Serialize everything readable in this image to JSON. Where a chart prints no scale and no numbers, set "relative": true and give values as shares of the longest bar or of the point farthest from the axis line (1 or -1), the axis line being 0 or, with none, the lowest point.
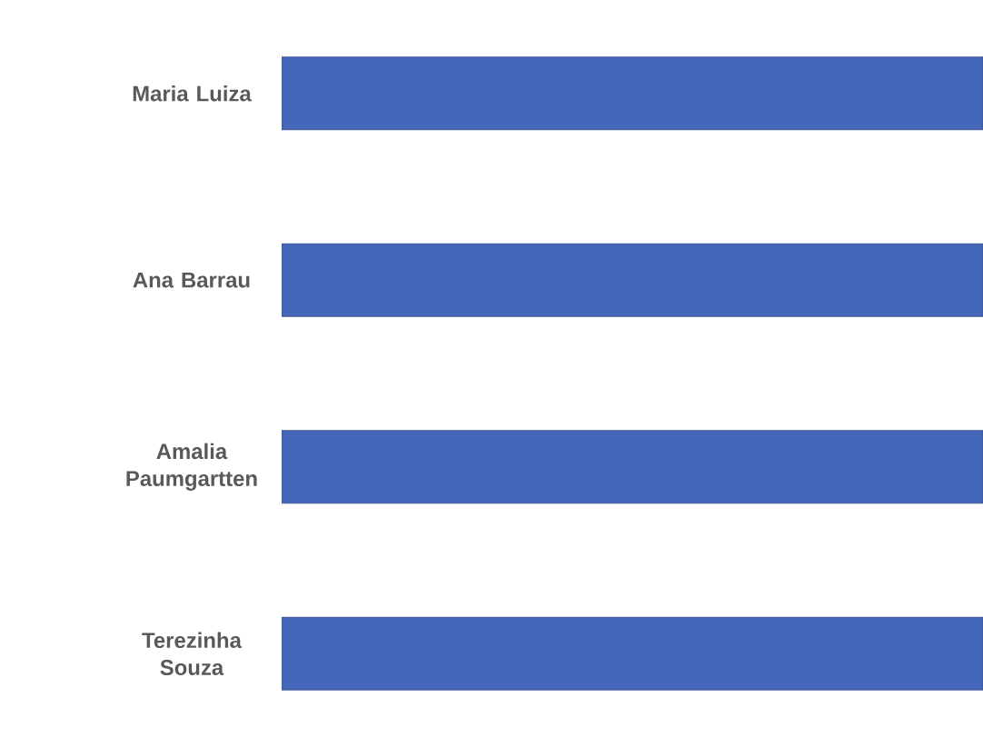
{
  "chart_data": {
    "type": "bar",
    "orientation": "horizontal",
    "relative": true,
    "categories": [
      "Maria Luiza",
      "Ana Barrau",
      "Amalia Paumgartten",
      "Terezinha Souza"
    ],
    "values": [
      1,
      1,
      1,
      1
    ],
    "color": "#4567b9"
  }
}
